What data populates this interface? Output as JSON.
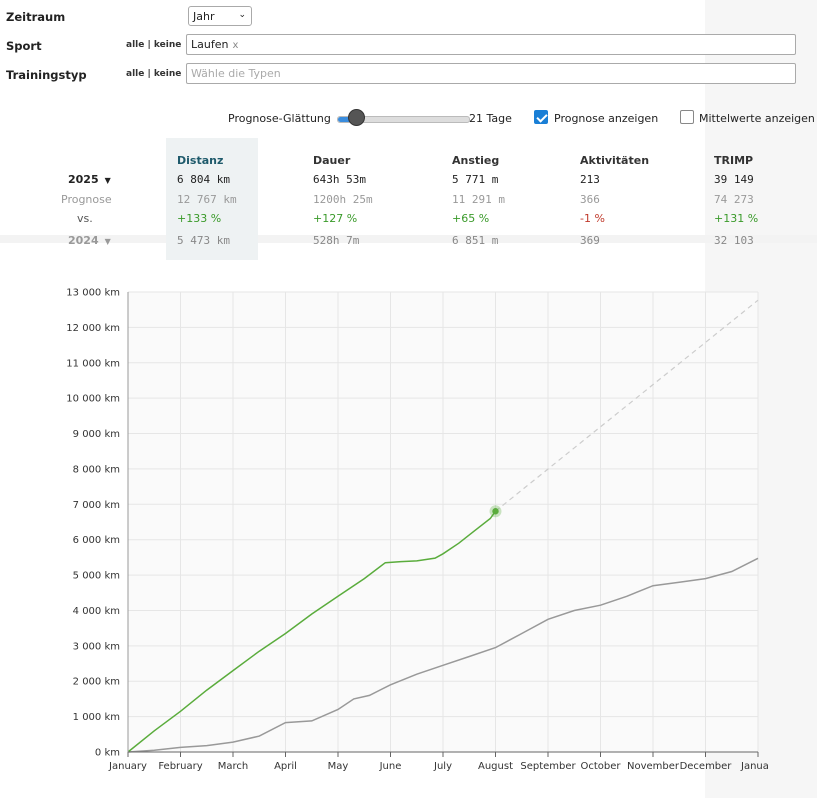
{
  "filters": {
    "zeitraum": {
      "label": "Zeitraum",
      "value": "Jahr"
    },
    "sport": {
      "label": "Sport",
      "toggle": "alle | keine",
      "tag": "Laufen",
      "tag_remove": "x"
    },
    "trainingstyp": {
      "label": "Trainingstyp",
      "toggle": "alle | keine",
      "placeholder": "Wähle die Typen"
    }
  },
  "controls": {
    "smoothing_label": "Prognose-Glättung",
    "smoothing_value": "21 Tage",
    "smoothing_fraction": 0.15,
    "show_forecast": {
      "label": "Prognose anzeigen",
      "checked": true
    },
    "show_averages": {
      "label": "Mittelwerte anzeigen",
      "checked": false
    }
  },
  "summary": {
    "headers": [
      "Distanz",
      "Dauer",
      "Anstieg",
      "Aktivitäten",
      "TRIMP"
    ],
    "rows": [
      {
        "label": "2025",
        "values": [
          "6 804 km",
          "643h 53m",
          "5 771 m",
          "213",
          "39 149"
        ]
      },
      {
        "label": "Prognose",
        "values": [
          "12 767 km",
          "1200h 25m",
          "11 291 m",
          "366",
          "74 273"
        ]
      },
      {
        "label": "vs.",
        "values": [
          "+133 %",
          "+127 %",
          "+65 %",
          "-1 %",
          "+131 %"
        ]
      },
      {
        "label": "2024",
        "values": [
          "5 473 km",
          "528h 7m",
          "6 851 m",
          "369",
          "32 103"
        ]
      }
    ]
  },
  "colors": {
    "current": "#5aac3c",
    "previous": "#999999",
    "forecast": "#cccccc",
    "highlight": "#eef2f3",
    "positive": "#3a9a2a",
    "negative": "#c0392b"
  },
  "chart_data": {
    "type": "line",
    "ylim": [
      0,
      13000
    ],
    "xlim": [
      0,
      12
    ],
    "y_ticks": [
      0,
      1000,
      2000,
      3000,
      4000,
      5000,
      6000,
      7000,
      8000,
      9000,
      10000,
      11000,
      12000,
      13000
    ],
    "y_tick_labels": [
      "0 km",
      "1 000 km",
      "2 000 km",
      "3 000 km",
      "4 000 km",
      "5 000 km",
      "6 000 km",
      "7 000 km",
      "8 000 km",
      "9 000 km",
      "10 000 km",
      "11 000 km",
      "12 000 km",
      "13 000 km"
    ],
    "x_tick_labels": [
      "January",
      "February",
      "March",
      "April",
      "May",
      "June",
      "July",
      "August",
      "September",
      "October",
      "November",
      "December",
      "Janua"
    ],
    "grid": true,
    "series": [
      {
        "values": [
          [
            0,
            0
          ],
          [
            0.5,
            600
          ],
          [
            1,
            1150
          ],
          [
            1.5,
            1750
          ],
          [
            2,
            2300
          ],
          [
            2.5,
            2850
          ],
          [
            3,
            3350
          ],
          [
            3.5,
            3900
          ],
          [
            4,
            4400
          ],
          [
            4.5,
            4900
          ],
          [
            4.9,
            5350
          ],
          [
            5.2,
            5380
          ],
          [
            5.5,
            5400
          ],
          [
            5.85,
            5480
          ],
          [
            6,
            5600
          ],
          [
            6.3,
            5900
          ],
          [
            6.6,
            6250
          ],
          [
            6.9,
            6600
          ],
          [
            7,
            6804
          ]
        ]
      },
      {
        "values": [
          [
            0,
            0
          ],
          [
            0.5,
            50
          ],
          [
            1,
            130
          ],
          [
            1.5,
            180
          ],
          [
            2,
            280
          ],
          [
            2.5,
            450
          ],
          [
            3,
            830
          ],
          [
            3.5,
            880
          ],
          [
            4,
            1200
          ],
          [
            4.3,
            1500
          ],
          [
            4.6,
            1600
          ],
          [
            5,
            1900
          ],
          [
            5.5,
            2200
          ],
          [
            6,
            2450
          ],
          [
            6.5,
            2700
          ],
          [
            7,
            2950
          ],
          [
            7.5,
            3350
          ],
          [
            8,
            3750
          ],
          [
            8.5,
            4000
          ],
          [
            9,
            4150
          ],
          [
            9.5,
            4400
          ],
          [
            10,
            4700
          ],
          [
            10.5,
            4800
          ],
          [
            11,
            4900
          ],
          [
            11.5,
            5100
          ],
          [
            12,
            5473
          ]
        ]
      },
      {
        "dashed": true,
        "values": [
          [
            7,
            6804
          ],
          [
            12,
            12767
          ]
        ]
      }
    ],
    "annotations": [
      {
        "x": 7,
        "y": 6804,
        "marker": "current-point"
      }
    ]
  }
}
